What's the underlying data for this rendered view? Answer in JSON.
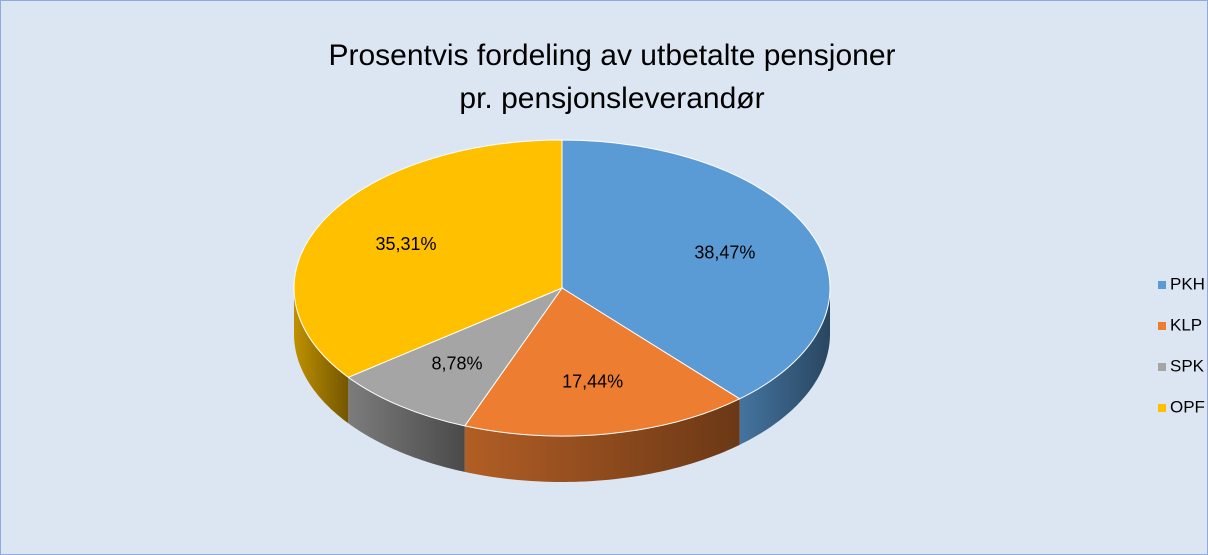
{
  "chart_data": {
    "type": "pie3d",
    "title": [
      "Prosentvis fordeling av utbetalte pensjoner",
      "pr. pensjonsleverandør"
    ],
    "categories": [
      "PKH",
      "KLP",
      "SPK",
      "OPF"
    ],
    "values": [
      38.47,
      17.44,
      8.78,
      35.31
    ],
    "value_labels": [
      "38,47%",
      "17,44%",
      "8,78%",
      "35,31%"
    ],
    "colors": [
      "#5b9bd5",
      "#ed7d31",
      "#a5a5a5",
      "#ffc000"
    ],
    "legend": "right"
  }
}
